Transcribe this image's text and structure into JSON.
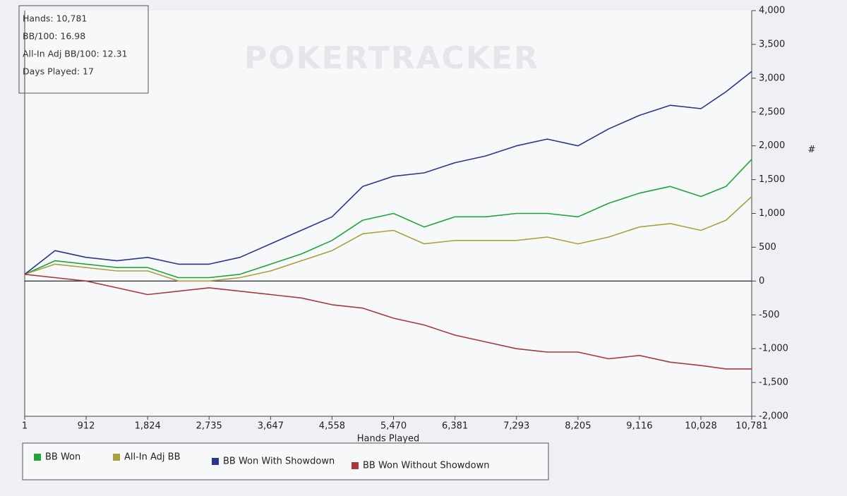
{
  "chart_data": {
    "type": "line",
    "watermark": "POKERTRACKER",
    "stats": [
      "Hands: 10,781",
      "BB/100: 16.98",
      "All-In Adj BB/100: 12.31",
      "Days Played: 17"
    ],
    "x_label": "Hands Played",
    "y_label": "#",
    "x": [
      1,
      450,
      912,
      1368,
      1824,
      2280,
      2735,
      3191,
      3647,
      4102,
      4558,
      5014,
      5470,
      5925,
      6381,
      6837,
      7293,
      7749,
      8205,
      8660,
      9116,
      9572,
      10028,
      10400,
      10781
    ],
    "series": [
      {
        "name": "BB Won",
        "color": "#1fa53a",
        "values": [
          100,
          300,
          250,
          200,
          200,
          50,
          50,
          100,
          250,
          400,
          600,
          900,
          1000,
          800,
          950,
          950,
          1000,
          1000,
          950,
          1150,
          1300,
          1400,
          1250,
          1400,
          1800
        ]
      },
      {
        "name": "All-In Adj BB",
        "color": "#a9a23a",
        "values": [
          100,
          250,
          200,
          150,
          150,
          0,
          0,
          50,
          150,
          300,
          450,
          700,
          750,
          550,
          600,
          600,
          600,
          650,
          550,
          650,
          800,
          850,
          750,
          900,
          1250
        ]
      },
      {
        "name": "BB Won With Showdown",
        "color": "#2a3590",
        "values": [
          100,
          450,
          350,
          300,
          350,
          250,
          250,
          350,
          550,
          750,
          950,
          1400,
          1550,
          1600,
          1750,
          1850,
          2000,
          2100,
          2000,
          2250,
          2450,
          2600,
          2550,
          2800,
          3100
        ]
      },
      {
        "name": "BB Won Without Showdown",
        "color": "#a8383a",
        "values": [
          100,
          50,
          0,
          -100,
          -200,
          -150,
          -100,
          -150,
          -200,
          -250,
          -350,
          -400,
          -550,
          -650,
          -800,
          -900,
          -1000,
          -1050,
          -1050,
          -1150,
          -1100,
          -1200,
          -1250,
          -1300,
          -1300
        ]
      }
    ],
    "xlim": [
      1,
      10781
    ],
    "xticks": [
      1,
      912,
      {
        "value": 1824,
        "label": "1,824"
      },
      {
        "value": 2735,
        "label": "2,735"
      },
      {
        "value": 3647,
        "label": "3,647"
      },
      {
        "value": 4558,
        "label": "4,558"
      },
      {
        "value": 5470,
        "label": "5,470"
      },
      {
        "value": 6381,
        "label": "6,381"
      },
      {
        "value": 7293,
        "label": "7,293"
      },
      {
        "value": 8205,
        "label": "8,205"
      },
      {
        "value": 9116,
        "label": "9,116"
      },
      {
        "value": 10028,
        "label": "10,028"
      },
      {
        "value": 10781,
        "label": "10,781"
      }
    ],
    "ylim": [
      -2000,
      4000
    ],
    "yticks": [
      {
        "value": -2000,
        "label": "-2,000"
      },
      {
        "value": -1500,
        "label": "-1,500"
      },
      {
        "value": -1000,
        "label": "-1,000"
      },
      -500,
      0,
      500,
      {
        "value": 1000,
        "label": "1,000"
      },
      {
        "value": 1500,
        "label": "1,500"
      },
      {
        "value": 2000,
        "label": "2,000"
      },
      {
        "value": 2500,
        "label": "2,500"
      },
      {
        "value": 3000,
        "label": "3,000"
      },
      {
        "value": 3500,
        "label": "3,500"
      },
      {
        "value": 4000,
        "label": "4,000"
      }
    ],
    "legend": "bottom-left"
  }
}
